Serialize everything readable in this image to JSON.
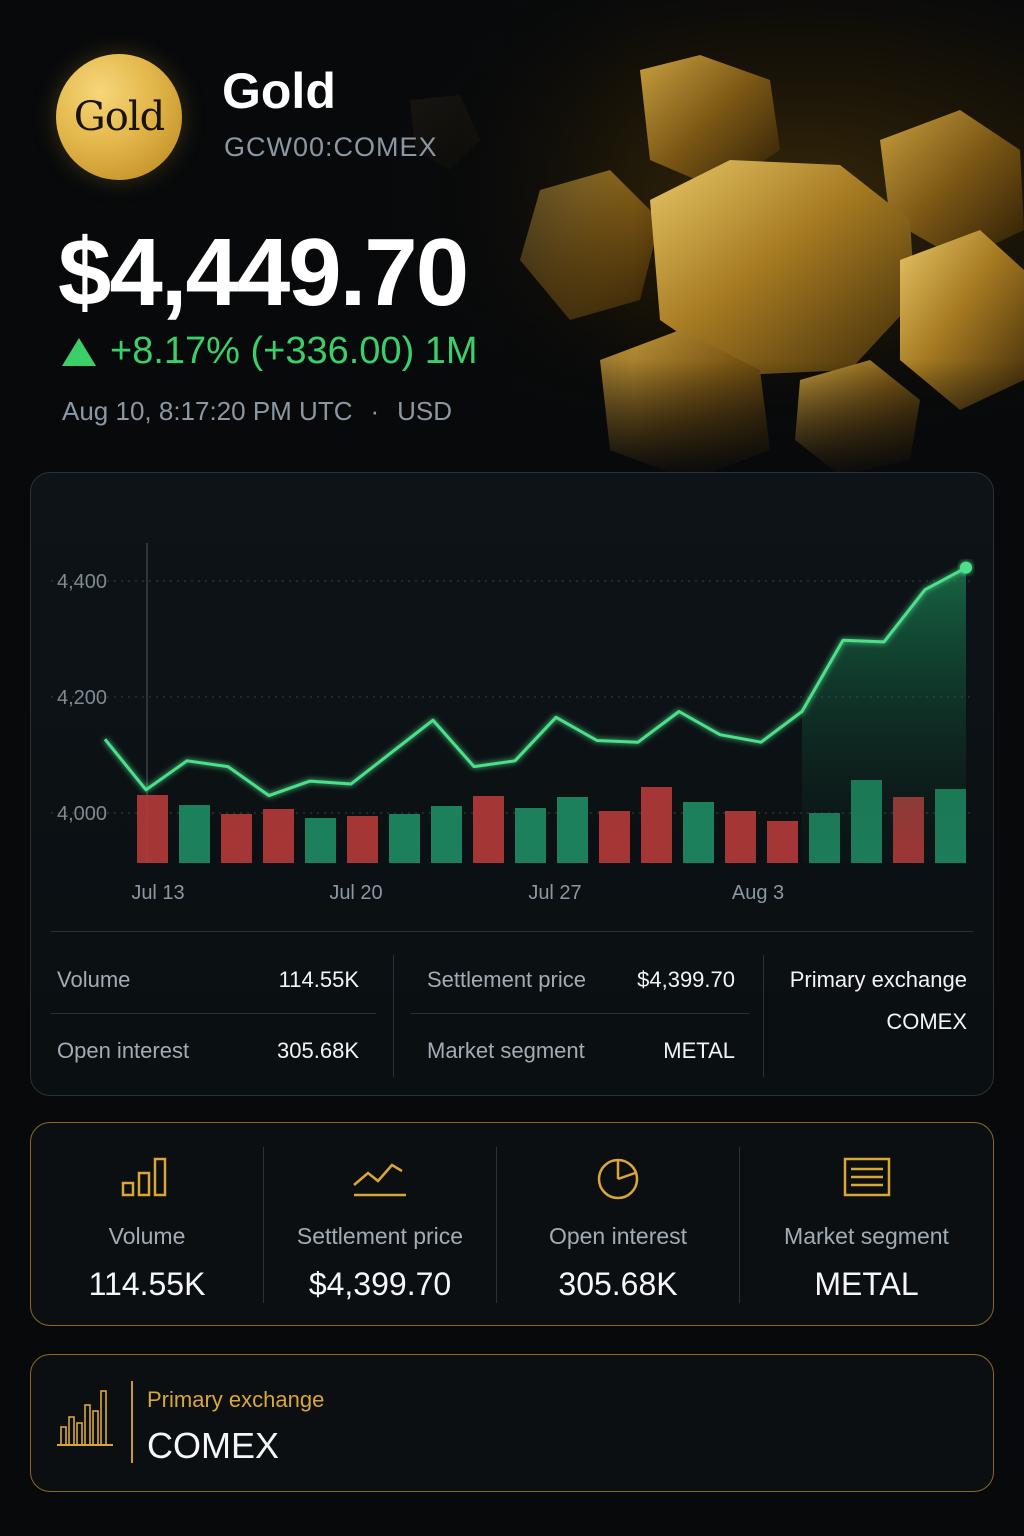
{
  "header": {
    "logo_text": "Gold",
    "name": "Gold",
    "ticker": "GCW00:COMEX",
    "price": "$4,449.70",
    "change": "+8.17% (+336.00) 1M",
    "timestamp": "Aug 10, 8:17:20 PM UTC",
    "separator": "·",
    "currency": "USD"
  },
  "colors": {
    "up": "#3bcf6a",
    "line": "#4de08a",
    "bar_up": "#1f8a63",
    "bar_down": "#b23a3a",
    "accent_gold": "#c99a2e"
  },
  "chart_data": {
    "type": "line",
    "x_tick_labels": [
      "Jul 13",
      "Jul 20",
      "Jul 27",
      "Aug 3"
    ],
    "y_tick_labels": [
      "4,400",
      "4,200",
      "4,000"
    ],
    "ylim": [
      3940,
      4500
    ],
    "series": [
      {
        "values": [
          4127,
          4040,
          4090,
          4080,
          4030,
          4055,
          4050,
          4105,
          4160,
          4080,
          4090,
          4165,
          4125,
          4122,
          4175,
          4135,
          4122,
          4175,
          4298,
          4295,
          4385,
          4423
        ]
      }
    ],
    "volume_bars": [
      {
        "dir": "down",
        "level": 0.68
      },
      {
        "dir": "up",
        "level": 0.58
      },
      {
        "dir": "down",
        "level": 0.49
      },
      {
        "dir": "down",
        "level": 0.54
      },
      {
        "dir": "up",
        "level": 0.45
      },
      {
        "dir": "down",
        "level": 0.47
      },
      {
        "dir": "up",
        "level": 0.49
      },
      {
        "dir": "up",
        "level": 0.57
      },
      {
        "dir": "down",
        "level": 0.67
      },
      {
        "dir": "up",
        "level": 0.55
      },
      {
        "dir": "up",
        "level": 0.66
      },
      {
        "dir": "down",
        "level": 0.52
      },
      {
        "dir": "down",
        "level": 0.76
      },
      {
        "dir": "up",
        "level": 0.61
      },
      {
        "dir": "down",
        "level": 0.52
      },
      {
        "dir": "down",
        "level": 0.42
      },
      {
        "dir": "up",
        "level": 0.5
      },
      {
        "dir": "up",
        "level": 0.83
      },
      {
        "dir": "down",
        "level": 0.66
      },
      {
        "dir": "up",
        "level": 0.74
      }
    ],
    "grid": "dotted horizontal",
    "legend": "none"
  },
  "stats": {
    "volume_label": "Volume",
    "volume_value": "114.55K",
    "settlement_label": "Settlement price",
    "settlement_value": "$4,399.70",
    "primary_label": "Primary exchange",
    "primary_value": "COMEX",
    "open_interest_label": "Open interest",
    "open_interest_value": "305.68K",
    "segment_label": "Market segment",
    "segment_value": "METAL"
  },
  "summary": [
    {
      "icon": "bar-chart-icon",
      "label": "Volume",
      "value": "114.55K"
    },
    {
      "icon": "trend-line-icon",
      "label": "Settlement price",
      "value": "$4,399.70"
    },
    {
      "icon": "pie-chart-icon",
      "label": "Open interest",
      "value": "305.68K"
    },
    {
      "icon": "document-icon",
      "label": "Market segment",
      "value": "METAL"
    }
  ],
  "exchange": {
    "icon": "exchange-bars-icon",
    "label": "Primary exchange",
    "value": "COMEX"
  }
}
